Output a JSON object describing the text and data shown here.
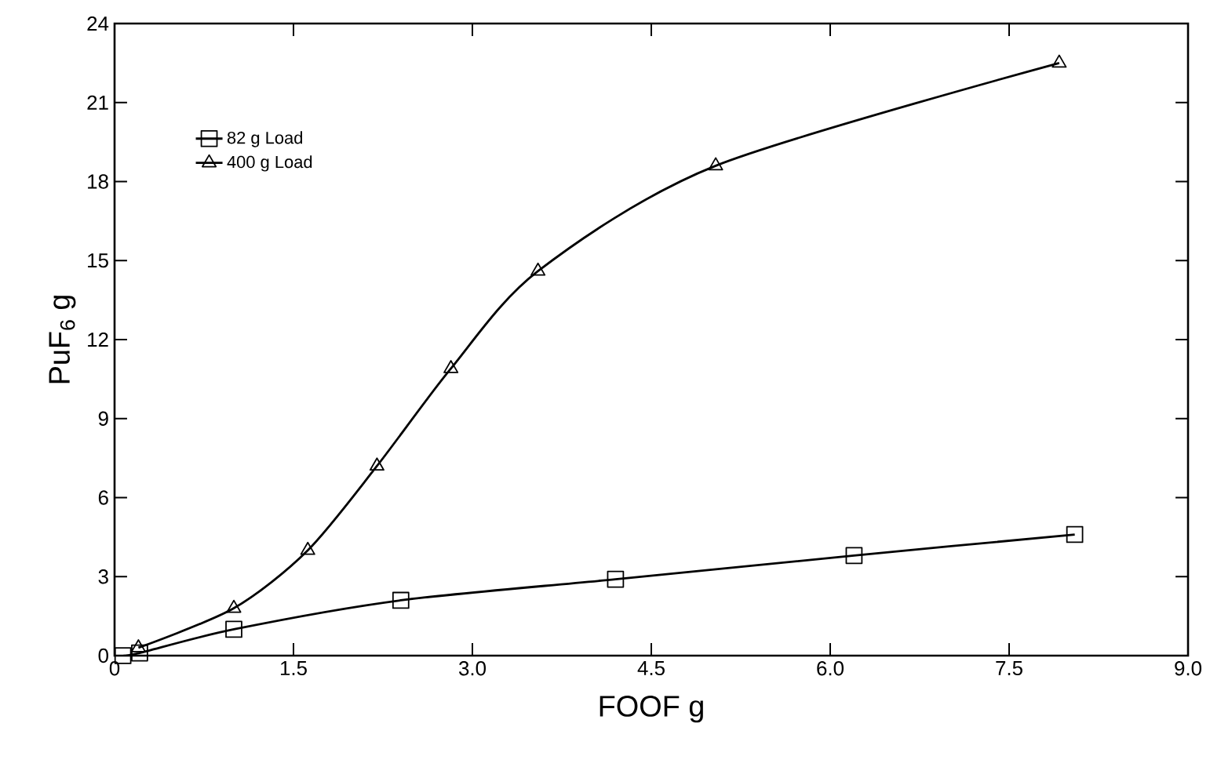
{
  "chart_data": {
    "type": "line",
    "xlabel": "FOOF g",
    "ylabel": "PuF$_{6}$ g",
    "xlim": [
      0,
      9
    ],
    "ylim": [
      0,
      24
    ],
    "xticks": [
      0,
      1.5,
      {
        "value": 3,
        "label": "3.0"
      },
      4.5,
      {
        "value": 6,
        "label": "6.0"
      },
      7.5,
      {
        "value": 9,
        "label": "9.0"
      }
    ],
    "yticks": [
      0,
      3,
      6,
      9,
      12,
      15,
      18,
      21,
      24
    ],
    "grid": false,
    "legend": "top left",
    "line_style": "solid",
    "series": [
      {
        "name": "82 g Load",
        "color": "#000000",
        "marker": "square",
        "x": [
          0.07,
          0.21,
          1.0,
          2.4,
          4.2,
          6.2,
          8.05
        ],
        "values": [
          0,
          0.1,
          1.0,
          2.1,
          2.9,
          3.8,
          4.6
        ]
      },
      {
        "name": "400 g Load",
        "color": "#000000",
        "marker": "triangle",
        "x": [
          0.2,
          1.0,
          1.62,
          2.2,
          2.82,
          3.55,
          5.04,
          7.92
        ],
        "values": [
          0.3,
          1.8,
          4.0,
          7.2,
          10.9,
          14.6,
          18.6,
          22.5
        ]
      }
    ]
  }
}
